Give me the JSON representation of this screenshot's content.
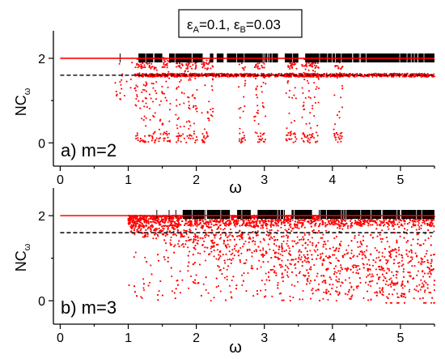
{
  "parameters_box": {
    "eps_symbol": "ε",
    "sub_a": "A",
    "value_a": "=0.1, ",
    "sub_b": "B",
    "value_b": "=0.03"
  },
  "colors": {
    "data": "#ff0000",
    "reference_line": "#000000",
    "marker": "#000000"
  },
  "chart_data": [
    {
      "type": "scatter",
      "panel_label": "a) m=2",
      "xlabel": "ω",
      "ylabel_main": "NC",
      "ylabel_sub": "ω",
      "xlim": [
        -0.1,
        5.5
      ],
      "ylim": [
        -0.55,
        2.65
      ],
      "x_ticks": [
        0,
        1,
        2,
        3,
        4,
        5
      ],
      "y_ticks": [
        0,
        2
      ],
      "upper_level": 2.0,
      "reference_level": 1.6,
      "dip_windows": [
        [
          1.1,
          1.42
        ],
        [
          1.45,
          1.62
        ],
        [
          1.7,
          2.02
        ],
        [
          2.08,
          2.25
        ],
        [
          2.62,
          2.72
        ],
        [
          2.85,
          3.02
        ],
        [
          3.32,
          3.48
        ],
        [
          3.55,
          3.8
        ],
        [
          4.02,
          4.15
        ]
      ],
      "marker_ranges": [
        [
          0.88,
          0.89
        ],
        [
          1.15,
          1.5
        ],
        [
          1.6,
          2.1
        ],
        [
          2.2,
          2.25
        ],
        [
          2.3,
          2.4
        ],
        [
          2.45,
          3.2
        ],
        [
          3.3,
          3.5
        ],
        [
          3.6,
          5.5
        ]
      ]
    },
    {
      "type": "scatter",
      "panel_label": "b) m=3",
      "xlabel": "ω",
      "ylabel_main": "NC",
      "ylabel_sub": "ω",
      "xlim": [
        -0.1,
        5.5
      ],
      "ylim": [
        -0.55,
        2.65
      ],
      "x_ticks": [
        0,
        1,
        2,
        3,
        4,
        5
      ],
      "y_ticks": [
        0,
        2
      ],
      "upper_level": 2.0,
      "reference_level": 1.6,
      "scatter_onset": 1.0,
      "marker_ranges": [
        [
          1.42,
          1.43
        ],
        [
          1.6,
          1.62
        ],
        [
          1.7,
          1.72
        ],
        [
          1.8,
          2.5
        ],
        [
          2.6,
          2.8
        ],
        [
          2.9,
          3.3
        ],
        [
          3.4,
          3.7
        ],
        [
          3.8,
          5.5
        ]
      ]
    }
  ]
}
